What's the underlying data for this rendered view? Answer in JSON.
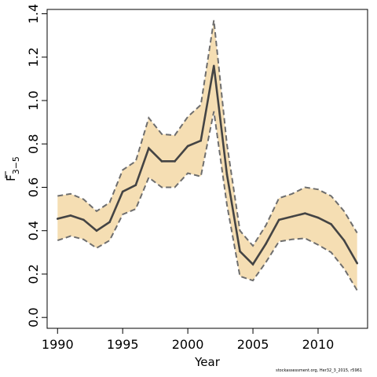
{
  "chart_data": {
    "type": "line",
    "xlabel": "Year",
    "ylabel": "F",
    "ylabel_sub": "3−5",
    "xlim": [
      1989.2,
      2013.8
    ],
    "ylim": [
      -0.05,
      1.42
    ],
    "xticks": [
      1990,
      1995,
      2000,
      2005,
      2010
    ],
    "yticks": [
      "0.0",
      "0.2",
      "0.4",
      "0.6",
      "0.8",
      "1.0",
      "1.2",
      "1.4"
    ],
    "x": [
      1990,
      1991,
      1992,
      1993,
      1994,
      1995,
      1996,
      1997,
      1998,
      1999,
      2000,
      2001,
      2002,
      2003,
      2004,
      2005,
      2006,
      2007,
      2008,
      2009,
      2010,
      2011,
      2012,
      2013
    ],
    "series": [
      {
        "role": "estimate",
        "values": [
          0.455,
          0.47,
          0.45,
          0.4,
          0.44,
          0.58,
          0.61,
          0.78,
          0.72,
          0.72,
          0.79,
          0.815,
          1.16,
          0.66,
          0.305,
          0.245,
          0.34,
          0.45,
          0.465,
          0.48,
          0.46,
          0.43,
          0.355,
          0.25
        ]
      },
      {
        "role": "upper",
        "values": [
          0.56,
          0.57,
          0.545,
          0.49,
          0.53,
          0.68,
          0.72,
          0.92,
          0.845,
          0.84,
          0.925,
          0.98,
          1.37,
          0.8,
          0.4,
          0.33,
          0.425,
          0.55,
          0.57,
          0.6,
          0.59,
          0.56,
          0.49,
          0.39
        ]
      },
      {
        "role": "lower",
        "values": [
          0.355,
          0.375,
          0.36,
          0.32,
          0.355,
          0.475,
          0.5,
          0.645,
          0.6,
          0.6,
          0.665,
          0.65,
          0.95,
          0.52,
          0.19,
          0.17,
          0.255,
          0.35,
          0.36,
          0.365,
          0.335,
          0.3,
          0.225,
          0.125
        ]
      }
    ],
    "colors": {
      "band": "#f5deb3",
      "line": "#444444",
      "ci_line": "#6e6e6e",
      "frame": "#000000"
    }
  },
  "footnote": "stockassessment.org, Her32_3_2015, r5961"
}
